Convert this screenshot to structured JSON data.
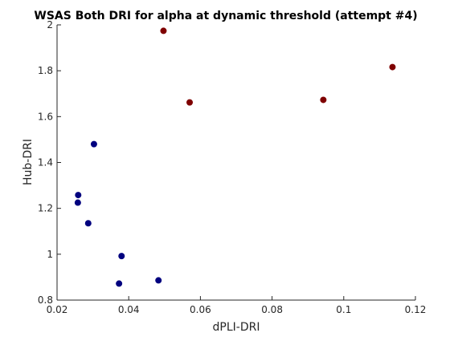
{
  "chart_data": {
    "type": "scatter",
    "title": "WSAS Both DRI for alpha at dynamic threshold (attempt #4)",
    "xlabel": "dPLI-DRI",
    "ylabel": "Hub-DRI",
    "xlim": [
      0.02,
      0.12
    ],
    "ylim": [
      0.8,
      2.0
    ],
    "xticks": [
      0.02,
      0.04,
      0.06,
      0.08,
      0.1,
      0.12
    ],
    "xtick_labels": [
      "0.02",
      "0.04",
      "0.06",
      "0.08",
      "0.1",
      "0.12"
    ],
    "yticks": [
      0.8,
      1.0,
      1.2,
      1.4,
      1.6,
      1.8,
      2.0
    ],
    "ytick_labels": [
      "0.8",
      "1",
      "1.2",
      "1.4",
      "1.6",
      "1.8",
      "2"
    ],
    "grid": false,
    "box": "left-bottom",
    "series": [
      {
        "color": "#00007f",
        "points": [
          {
            "x": 0.0303,
            "y": 1.48
          },
          {
            "x": 0.0259,
            "y": 1.258
          },
          {
            "x": 0.0258,
            "y": 1.225
          },
          {
            "x": 0.0287,
            "y": 1.135
          },
          {
            "x": 0.038,
            "y": 0.992
          },
          {
            "x": 0.0483,
            "y": 0.886
          },
          {
            "x": 0.0373,
            "y": 0.872
          }
        ]
      },
      {
        "color": "#7f0000",
        "points": [
          {
            "x": 0.0497,
            "y": 1.974
          },
          {
            "x": 0.057,
            "y": 1.662
          },
          {
            "x": 0.0943,
            "y": 1.673
          },
          {
            "x": 0.1136,
            "y": 1.816
          }
        ]
      }
    ]
  }
}
